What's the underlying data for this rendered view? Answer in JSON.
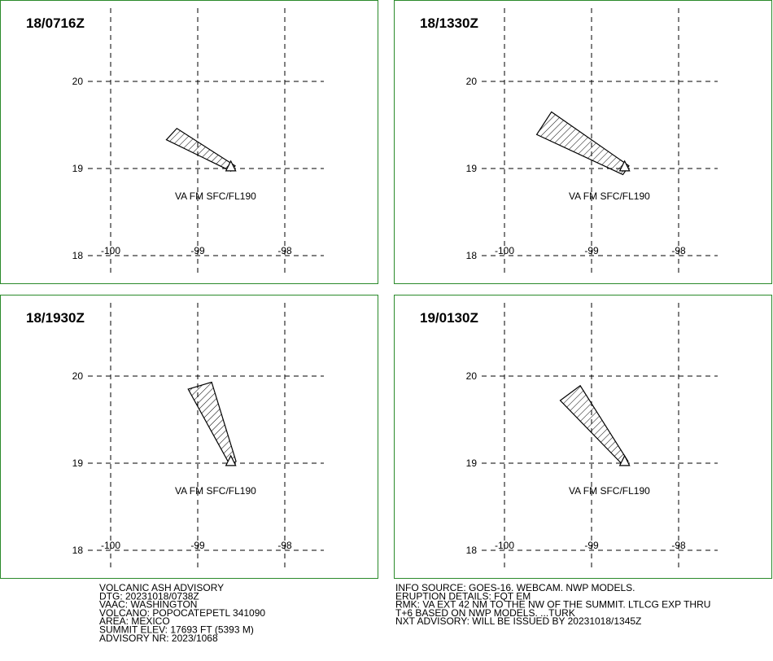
{
  "lon_ticks": [
    -100,
    -99,
    -98
  ],
  "lat_ticks": [
    18,
    19,
    20
  ],
  "volcano_position": [
    -98.62,
    19.02
  ],
  "panels": [
    {
      "time": "18/0716Z",
      "label": "VA FM SFC/FL190",
      "polygon_lon": [
        -99.24,
        -99.36,
        -98.62,
        -98.57
      ],
      "polygon_lat": [
        19.46,
        19.33,
        18.97,
        19.03
      ]
    },
    {
      "time": "18/1330Z",
      "label": "VA FM SFC/FL190",
      "polygon_lon": [
        -99.46,
        -99.63,
        -98.64,
        -98.57
      ],
      "polygon_lat": [
        19.65,
        19.39,
        18.93,
        19.03
      ]
    },
    {
      "time": "18/1930Z",
      "label": "VA FM SFC/FL190",
      "polygon_lon": [
        -99.11,
        -98.84,
        -98.56,
        -98.63
      ],
      "polygon_lat": [
        19.85,
        19.93,
        19.02,
        18.98
      ]
    },
    {
      "time": "19/0130Z",
      "label": "VA FM SFC/FL190",
      "polygon_lon": [
        -99.36,
        -99.13,
        -98.58,
        -98.64
      ],
      "polygon_lat": [
        19.72,
        19.89,
        19.02,
        18.98
      ]
    }
  ],
  "advisory_left": [
    "VOLCANIC ASH ADVISORY",
    "DTG: 20231018/0738Z",
    "VAAC: WASHINGTON",
    "VOLCANO: POPOCATEPETL 341090",
    "AREA: MEXICO",
    "SUMMIT ELEV: 17693 FT (5393 M)",
    "ADVISORY NR: 2023/1068"
  ],
  "advisory_right": [
    "INFO SOURCE: GOES-16. WEBCAM. NWP MODELS.",
    "ERUPTION DETAILS: FQT EM",
    "RMK: VA EXT 42 NM TO THE NW OF THE SUMMIT. LTLCG EXP THRU",
    "T+6 BASED ON NWP MODELS. ...TURK",
    "NXT ADVISORY: WILL BE ISSUED BY 20231018/1345Z"
  ]
}
